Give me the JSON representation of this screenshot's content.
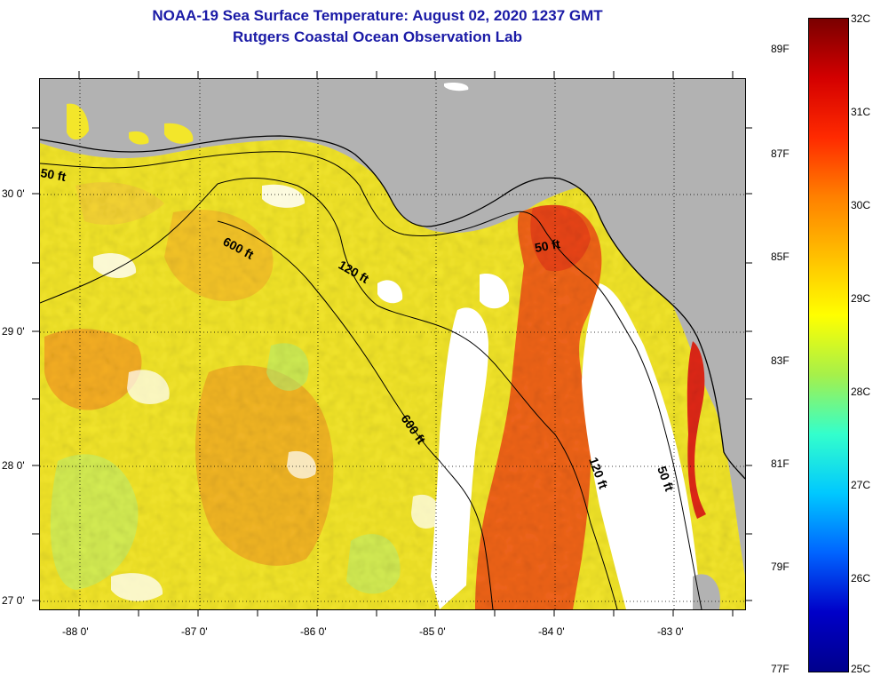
{
  "title": {
    "line1": "NOAA-19 Sea Surface Temperature:  August 02, 2020 1237 GMT",
    "line2": "Rutgers Coastal Ocean Observation Lab"
  },
  "map": {
    "latitude_labels": [
      "30 0'",
      "29 0'",
      "28 0'",
      "27 0'"
    ],
    "longitude_labels": [
      "-88 0'",
      "-87 0'",
      "-86 0'",
      "-85 0'",
      "-84 0'",
      "-83 0'"
    ],
    "contour_labels": [
      "50 ft",
      "600 ft",
      "120 ft",
      "50 ft",
      "600 ft",
      "120 ft",
      "50 ft"
    ],
    "land_color": "#b2b2b2",
    "cloud_color": "#ffffff"
  },
  "colorbar": {
    "fahrenheit_labels": [
      "89F",
      "87F",
      "85F",
      "83F",
      "81F",
      "79F",
      "77F"
    ],
    "celsius_labels": [
      "32C",
      "31C",
      "30C",
      "29C",
      "28C",
      "27C",
      "26C",
      "25C"
    ],
    "gradient_colors": [
      "#7a0000",
      "#d40000",
      "#ff2a00",
      "#ff8000",
      "#ffbf00",
      "#ffff00",
      "#a6f04a",
      "#33ffcc",
      "#00c8ff",
      "#0064ff",
      "#0000c8",
      "#00008c"
    ]
  }
}
